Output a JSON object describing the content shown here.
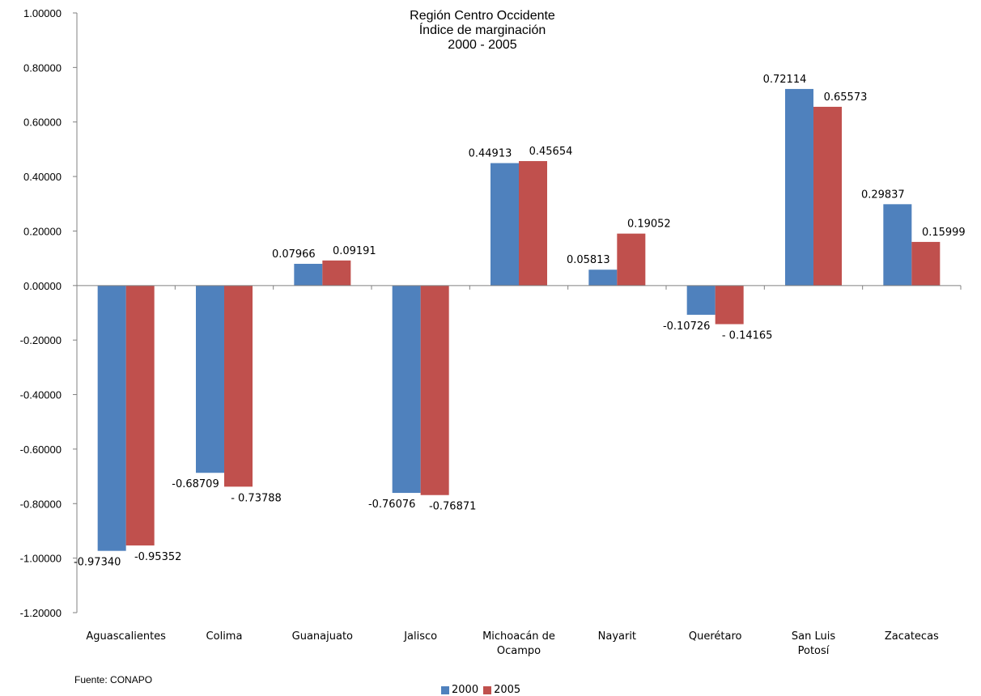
{
  "source_note": "Fuente: CONAPO",
  "chart_data": {
    "type": "bar",
    "title": [
      "Región Centro Occidente",
      "Índice de marginación",
      "2000 - 2005"
    ],
    "categories": [
      "Aguascalientes",
      "Colima",
      "Guanajuato",
      "Jalisco",
      "Michoacán de Ocampo",
      "Nayarit",
      "Querétaro",
      "San Luis Potosí",
      "Zacatecas"
    ],
    "series": [
      {
        "name": "2000",
        "color": "#4f81bd",
        "values": [
          -0.9734,
          -0.68709,
          0.07966,
          -0.76076,
          0.44913,
          0.05813,
          -0.10726,
          0.72114,
          0.29837
        ],
        "labels": [
          "-0.97340",
          "-0.68709",
          "0.07966",
          "-0.76076",
          "0.44913",
          "0.05813",
          "-0.10726",
          "0.72114",
          "0.29837"
        ]
      },
      {
        "name": "2005",
        "color": "#c0504d",
        "values": [
          -0.95352,
          -0.73788,
          0.09191,
          -0.76871,
          0.45654,
          0.19052,
          -0.14165,
          0.65573,
          0.15999
        ],
        "labels": [
          "-0.95352",
          "- 0.73788",
          "0.09191",
          "-0.76871",
          "0.45654",
          "0.19052",
          "- 0.14165",
          "0.65573",
          "0.15999"
        ]
      }
    ],
    "ylim": [
      -1.2,
      1.0
    ],
    "yticks": [
      1.0,
      0.8,
      0.6,
      0.4,
      0.2,
      0.0,
      -0.2,
      -0.4,
      -0.6,
      -0.8,
      -1.0,
      -1.2
    ],
    "ytick_labels": [
      "1.00000",
      "0.80000",
      "0.60000",
      "0.40000",
      "0.20000",
      "0.00000",
      "-0.20000",
      "-0.40000",
      "-0.60000",
      "-0.80000",
      "-1.00000",
      "-1.20000"
    ],
    "grid": false,
    "legend_position": "bottom"
  }
}
